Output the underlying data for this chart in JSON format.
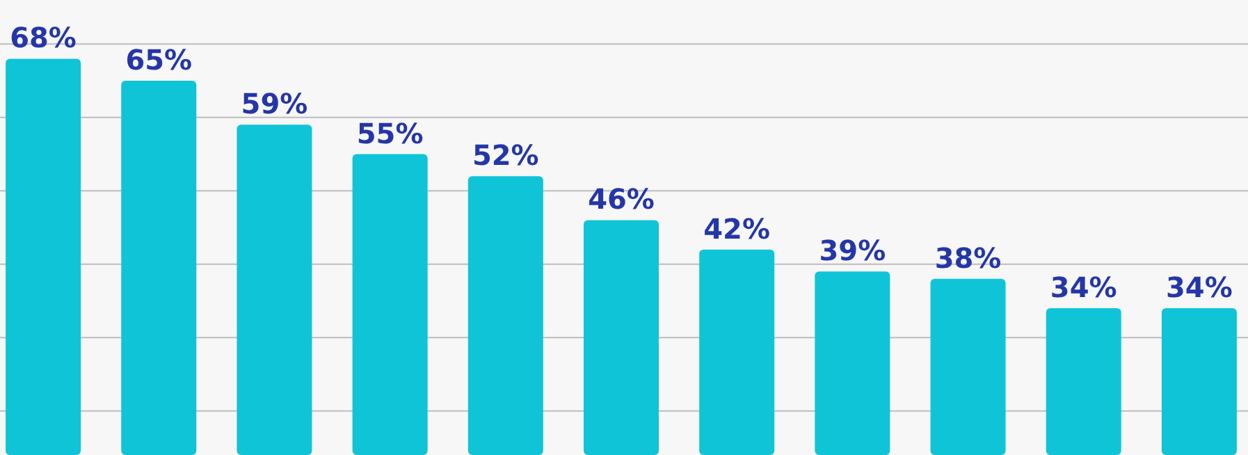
{
  "chart_data": {
    "type": "bar",
    "categories": [
      null,
      null,
      null,
      null,
      null,
      null,
      null,
      null,
      null,
      null,
      null
    ],
    "values": [
      68,
      65,
      59,
      55,
      52,
      46,
      42,
      39,
      38,
      34,
      34
    ],
    "value_labels": [
      "68%",
      "65%",
      "59%",
      "55%",
      "52%",
      "46%",
      "42%",
      "39%",
      "38%",
      "34%",
      "34%"
    ],
    "color": "#10c4d8",
    "ylim": [
      14,
      76
    ],
    "yticks": [
      {
        "value": 20,
        "label": null
      },
      {
        "value": 30,
        "label": null
      },
      {
        "value": 40,
        "label": null
      },
      {
        "value": 50,
        "label": null
      },
      {
        "value": 60,
        "label": null
      },
      {
        "value": 70,
        "label": null
      }
    ],
    "grid": "y"
  }
}
